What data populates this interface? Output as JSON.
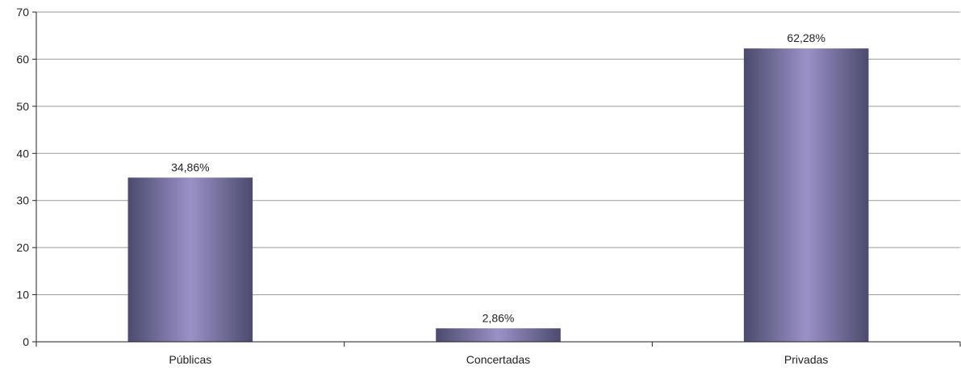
{
  "chart_data": {
    "type": "bar",
    "title": "",
    "xlabel": "",
    "ylabel": "",
    "categories": [
      "Públicas",
      "Concertadas",
      "Privadas"
    ],
    "values": [
      34.86,
      2.86,
      62.28
    ],
    "data_labels": [
      "34,86%",
      "2,86%",
      "62,28%"
    ],
    "ylim": [
      0,
      70
    ],
    "yticks": [
      0,
      10,
      20,
      30,
      40,
      50,
      60,
      70
    ],
    "ytick_labels": [
      "0",
      "10",
      "20",
      "30",
      "40",
      "50",
      "60",
      "70"
    ],
    "grid": true,
    "legend": "none",
    "colors": {
      "bar_edge": "#4a4b6e",
      "bar_center": "#9b91c6",
      "grid": "#9a9a9a",
      "axis": "#222222"
    }
  }
}
